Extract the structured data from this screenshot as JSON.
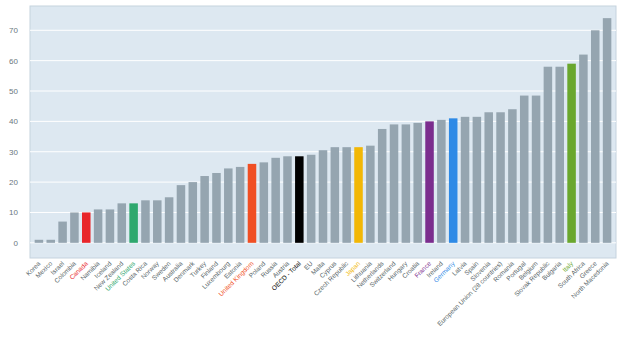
{
  "chart_data": {
    "type": "bar",
    "categories": [
      "Korea",
      "Mexico",
      "Israel",
      "Colombia",
      "Canada",
      "Namibia",
      "Iceland",
      "New Zealand",
      "United States",
      "Costa Rica",
      "Norway",
      "Sweden",
      "Australia",
      "Denmark",
      "Turkey",
      "Finland",
      "Luxembourg",
      "Estonia",
      "United Kingdom",
      "Poland",
      "Russia",
      "Austria",
      "OECD - Total",
      "EU",
      "Malta",
      "Cyprus",
      "Czech Republic",
      "Japan",
      "Lithuania",
      "Netherlands",
      "Switzerland",
      "Hungary",
      "Croatia",
      "France",
      "Ireland",
      "Germany",
      "Latvia",
      "Spain",
      "Slovenia",
      "European Union (28 countries)",
      "Romania",
      "Portugal",
      "Belgium",
      "Slovak Republic",
      "Bulgaria",
      "Italy",
      "South Africa",
      "Greece",
      "North Macedonia"
    ],
    "values": [
      1,
      1,
      7,
      10,
      10,
      11,
      11,
      13,
      13,
      14,
      14,
      15,
      19,
      20,
      22,
      23,
      24.5,
      25,
      26,
      26.5,
      28,
      28.5,
      28.5,
      29,
      30.5,
      31.5,
      31.5,
      31.5,
      32,
      37.5,
      39,
      39,
      39.5,
      40,
      40.5,
      41,
      41.5,
      41.5,
      43,
      43,
      44,
      48.5,
      48.5,
      58,
      58,
      59,
      62,
      70,
      74
    ],
    "colors": [
      "#95a5b0",
      "#95a5b0",
      "#95a5b0",
      "#95a5b0",
      "#e8262a",
      "#95a5b0",
      "#95a5b0",
      "#95a5b0",
      "#2ea86e",
      "#95a5b0",
      "#95a5b0",
      "#95a5b0",
      "#95a5b0",
      "#95a5b0",
      "#95a5b0",
      "#95a5b0",
      "#95a5b0",
      "#95a5b0",
      "#f04f24",
      "#95a5b0",
      "#95a5b0",
      "#95a5b0",
      "#000000",
      "#95a5b0",
      "#95a5b0",
      "#95a5b0",
      "#95a5b0",
      "#f2b705",
      "#95a5b0",
      "#95a5b0",
      "#95a5b0",
      "#95a5b0",
      "#95a5b0",
      "#7b2d8e",
      "#95a5b0",
      "#2e8ae6",
      "#95a5b0",
      "#95a5b0",
      "#95a5b0",
      "#95a5b0",
      "#95a5b0",
      "#95a5b0",
      "#95a5b0",
      "#95a5b0",
      "#95a5b0",
      "#6aa72e",
      "#95a5b0",
      "#95a5b0",
      "#95a5b0"
    ],
    "ylim": [
      -5,
      78
    ],
    "yticks": [
      0,
      10,
      20,
      30,
      40,
      50,
      60,
      70
    ],
    "grid": true
  }
}
